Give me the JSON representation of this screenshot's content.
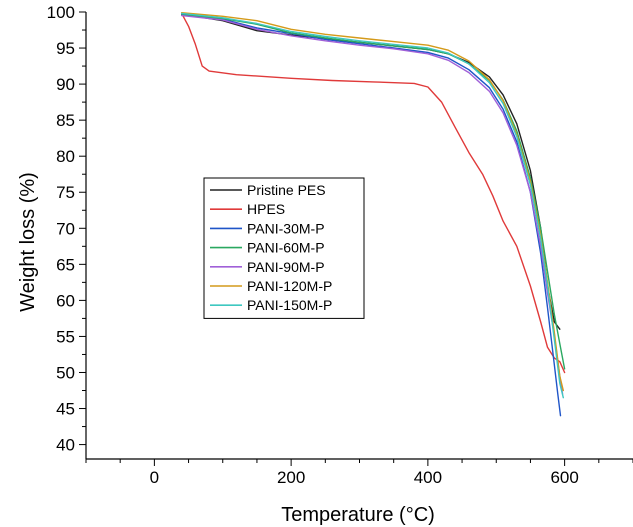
{
  "chart_data": {
    "type": "line",
    "title": "",
    "xlabel": "Temperature (°C)",
    "ylabel": "Weight loss (%)",
    "xlim": [
      -100,
      700
    ],
    "ylim": [
      38,
      100
    ],
    "xticks": [
      0,
      200,
      400,
      600
    ],
    "yticks": [
      40,
      45,
      50,
      55,
      60,
      65,
      70,
      75,
      80,
      85,
      90,
      95,
      100
    ],
    "x_minor_step": 50,
    "y_minor_step": 2.5,
    "grid": false,
    "legend": "center-left",
    "series": [
      {
        "name": "Pristine PES",
        "color": "#222222",
        "points": [
          [
            40,
            99.8
          ],
          [
            60,
            99.4
          ],
          [
            100,
            98.8
          ],
          [
            150,
            97.4
          ],
          [
            200,
            96.8
          ],
          [
            250,
            96.3
          ],
          [
            300,
            95.8
          ],
          [
            350,
            95.3
          ],
          [
            400,
            94.8
          ],
          [
            430,
            94.2
          ],
          [
            460,
            93.0
          ],
          [
            490,
            91.0
          ],
          [
            510,
            88.5
          ],
          [
            530,
            84.5
          ],
          [
            550,
            78.0
          ],
          [
            565,
            70.0
          ],
          [
            575,
            62.0
          ],
          [
            585,
            57.0
          ],
          [
            593,
            56.0
          ]
        ]
      },
      {
        "name": "HPES",
        "color": "#e03a3a",
        "points": [
          [
            40,
            99.8
          ],
          [
            50,
            98.0
          ],
          [
            60,
            95.5
          ],
          [
            70,
            92.5
          ],
          [
            80,
            91.8
          ],
          [
            120,
            91.3
          ],
          [
            200,
            90.8
          ],
          [
            260,
            90.5
          ],
          [
            320,
            90.3
          ],
          [
            380,
            90.1
          ],
          [
            400,
            89.6
          ],
          [
            420,
            87.5
          ],
          [
            440,
            84.0
          ],
          [
            460,
            80.5
          ],
          [
            480,
            77.5
          ],
          [
            495,
            74.5
          ],
          [
            510,
            71.0
          ],
          [
            530,
            67.5
          ],
          [
            550,
            62.0
          ],
          [
            565,
            57.0
          ],
          [
            575,
            53.5
          ],
          [
            585,
            52.0
          ],
          [
            593,
            51.5
          ],
          [
            600,
            50.0
          ]
        ]
      },
      {
        "name": "PANI-30M-P",
        "color": "#1f55c8",
        "points": [
          [
            40,
            99.7
          ],
          [
            100,
            99.0
          ],
          [
            150,
            97.8
          ],
          [
            200,
            97.0
          ],
          [
            250,
            96.2
          ],
          [
            300,
            95.6
          ],
          [
            350,
            95.0
          ],
          [
            400,
            94.4
          ],
          [
            430,
            93.6
          ],
          [
            460,
            92.0
          ],
          [
            490,
            89.5
          ],
          [
            510,
            86.5
          ],
          [
            530,
            82.0
          ],
          [
            550,
            75.0
          ],
          [
            565,
            66.5
          ],
          [
            575,
            59.0
          ],
          [
            585,
            51.0
          ],
          [
            590,
            47.0
          ],
          [
            594,
            44.0
          ]
        ]
      },
      {
        "name": "PANI-60M-P",
        "color": "#2aa860",
        "points": [
          [
            40,
            99.6
          ],
          [
            100,
            99.1
          ],
          [
            150,
            98.3
          ],
          [
            200,
            97.1
          ],
          [
            250,
            96.4
          ],
          [
            300,
            95.8
          ],
          [
            350,
            95.3
          ],
          [
            400,
            94.8
          ],
          [
            430,
            94.2
          ],
          [
            460,
            92.8
          ],
          [
            490,
            90.5
          ],
          [
            510,
            87.8
          ],
          [
            530,
            83.5
          ],
          [
            550,
            77.0
          ],
          [
            565,
            70.0
          ],
          [
            575,
            64.0
          ],
          [
            585,
            58.0
          ],
          [
            593,
            54.0
          ],
          [
            600,
            50.5
          ]
        ]
      },
      {
        "name": "PANI-90M-P",
        "color": "#a060d8",
        "points": [
          [
            40,
            99.5
          ],
          [
            100,
            98.9
          ],
          [
            150,
            97.6
          ],
          [
            200,
            96.7
          ],
          [
            250,
            96.0
          ],
          [
            300,
            95.4
          ],
          [
            350,
            94.9
          ],
          [
            400,
            94.2
          ],
          [
            430,
            93.3
          ],
          [
            460,
            91.6
          ],
          [
            490,
            89.0
          ],
          [
            510,
            86.0
          ],
          [
            530,
            81.5
          ],
          [
            550,
            75.0
          ],
          [
            565,
            67.5
          ],
          [
            575,
            61.0
          ],
          [
            585,
            55.0
          ],
          [
            593,
            49.5
          ],
          [
            597,
            47.0
          ]
        ]
      },
      {
        "name": "PANI-120M-P",
        "color": "#d49a1a",
        "points": [
          [
            40,
            99.9
          ],
          [
            100,
            99.4
          ],
          [
            150,
            98.8
          ],
          [
            200,
            97.6
          ],
          [
            250,
            96.9
          ],
          [
            300,
            96.4
          ],
          [
            350,
            95.9
          ],
          [
            400,
            95.4
          ],
          [
            430,
            94.7
          ],
          [
            460,
            93.2
          ],
          [
            490,
            90.6
          ],
          [
            510,
            87.7
          ],
          [
            530,
            83.0
          ],
          [
            550,
            76.5
          ],
          [
            565,
            69.0
          ],
          [
            575,
            62.5
          ],
          [
            585,
            55.5
          ],
          [
            593,
            49.5
          ],
          [
            598,
            47.5
          ]
        ]
      },
      {
        "name": "PANI-150M-P",
        "color": "#3ec8c0",
        "points": [
          [
            40,
            99.8
          ],
          [
            100,
            99.2
          ],
          [
            150,
            98.4
          ],
          [
            200,
            97.3
          ],
          [
            250,
            96.6
          ],
          [
            300,
            96.0
          ],
          [
            350,
            95.5
          ],
          [
            400,
            95.0
          ],
          [
            430,
            94.3
          ],
          [
            460,
            92.8
          ],
          [
            490,
            90.2
          ],
          [
            510,
            87.3
          ],
          [
            530,
            82.7
          ],
          [
            550,
            76.0
          ],
          [
            565,
            68.5
          ],
          [
            575,
            62.0
          ],
          [
            585,
            54.5
          ],
          [
            593,
            48.5
          ],
          [
            598,
            46.5
          ]
        ]
      }
    ]
  }
}
